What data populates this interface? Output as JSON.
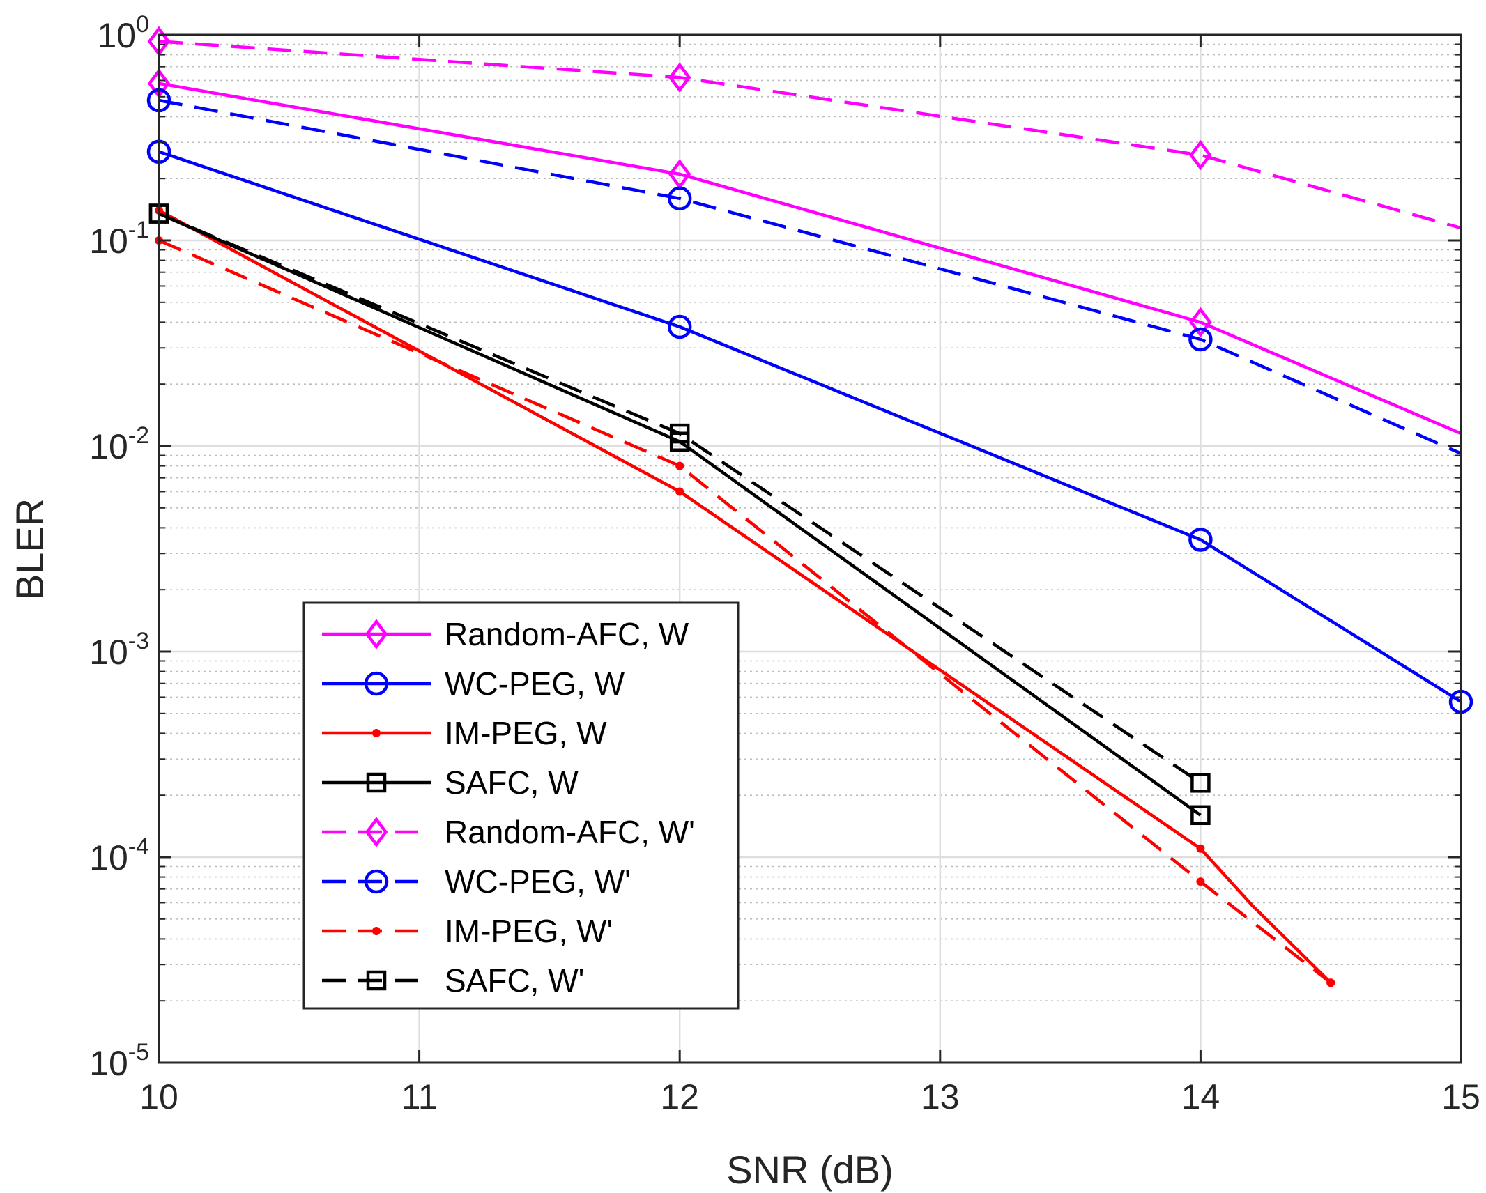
{
  "chart_data": {
    "type": "line",
    "title": "",
    "xlabel": "SNR (dB)",
    "ylabel": "BLER",
    "yscale": "log",
    "xlim": [
      10,
      15
    ],
    "ylim": [
      1e-05,
      1
    ],
    "grid": true,
    "minor_grid": true,
    "legend_location": "bottom-left",
    "x_ticks": [
      10,
      11,
      12,
      13,
      14,
      15
    ],
    "x_tick_labels": [
      "10",
      "11",
      "12",
      "13",
      "14",
      "15"
    ],
    "y_ticks": [
      1e-05,
      0.0001,
      0.001,
      0.01,
      0.1,
      1
    ],
    "y_tick_labels": [
      {
        "base": "10",
        "exp": "-5"
      },
      {
        "base": "10",
        "exp": "-4"
      },
      {
        "base": "10",
        "exp": "-3"
      },
      {
        "base": "10",
        "exp": "-2"
      },
      {
        "base": "10",
        "exp": "-1"
      },
      {
        "base": "10",
        "exp": "0"
      }
    ],
    "series": [
      {
        "name": "Random-AFC, W",
        "color": "#ff00ff",
        "dash": "solid",
        "marker": "diamond",
        "marker_x": [
          10,
          12,
          14
        ],
        "x": [
          10,
          12,
          14,
          15
        ],
        "y": [
          0.58,
          0.21,
          0.04,
          0.0115
        ]
      },
      {
        "name": "WC-PEG, W",
        "color": "#0000ff",
        "dash": "solid",
        "marker": "circle",
        "marker_x": [
          10,
          12,
          14,
          15
        ],
        "x": [
          10,
          12,
          14,
          15
        ],
        "y": [
          0.27,
          0.038,
          0.0035,
          0.00057
        ]
      },
      {
        "name": "IM-PEG, W",
        "color": "#ff0000",
        "dash": "solid",
        "marker": "dot",
        "marker_x": [
          10,
          12,
          14,
          14.5
        ],
        "x": [
          10,
          12,
          14,
          14.2,
          14.5
        ],
        "y": [
          0.14,
          0.006,
          0.00011,
          5.8e-05,
          2.45e-05
        ]
      },
      {
        "name": "SAFC, W",
        "color": "#000000",
        "dash": "solid",
        "marker": "square",
        "marker_x": [
          10,
          12,
          14
        ],
        "x": [
          10,
          12,
          14
        ],
        "y": [
          0.135,
          0.0105,
          0.00016
        ]
      },
      {
        "name": "Random-AFC, W'",
        "color": "#ff00ff",
        "dash": "dashed",
        "marker": "diamond",
        "marker_x": [
          10,
          12,
          14
        ],
        "x": [
          10,
          12,
          14,
          15
        ],
        "y": [
          0.93,
          0.62,
          0.26,
          0.115
        ]
      },
      {
        "name": "WC-PEG, W'",
        "color": "#0000ff",
        "dash": "dashed",
        "marker": "circle",
        "marker_x": [
          10,
          12,
          14
        ],
        "x": [
          10,
          12,
          14,
          15
        ],
        "y": [
          0.48,
          0.16,
          0.033,
          0.0092
        ]
      },
      {
        "name": "IM-PEG, W'",
        "color": "#ff0000",
        "dash": "dashed",
        "marker": "dot",
        "marker_x": [
          10,
          12,
          14,
          14.5
        ],
        "x": [
          10,
          12,
          14,
          14.5
        ],
        "y": [
          0.1,
          0.008,
          7.6e-05,
          2.45e-05
        ]
      },
      {
        "name": "SAFC, W'",
        "color": "#000000",
        "dash": "dashed",
        "marker": "square",
        "marker_x": [
          10,
          12,
          14
        ],
        "x": [
          10,
          12,
          14
        ],
        "y": [
          0.135,
          0.0115,
          0.00023
        ]
      }
    ]
  }
}
